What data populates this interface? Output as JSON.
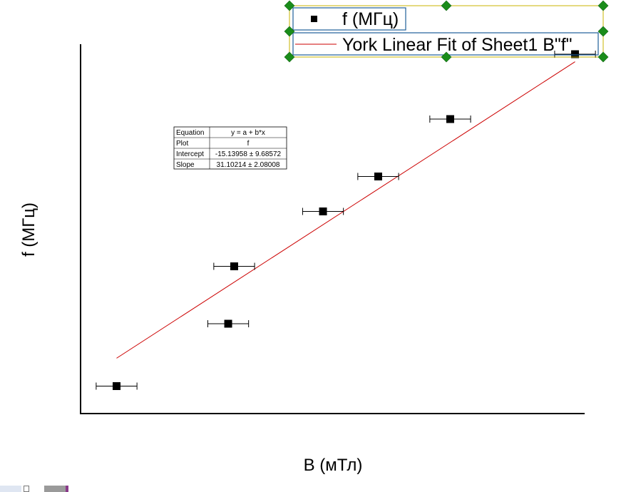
{
  "chart_data": {
    "type": "scatter",
    "xlabel": "B (мТл)",
    "ylabel": "f (МГц)",
    "xlim": [
      1.8,
      6.0
    ],
    "ylim": [
      28,
      176
    ],
    "grid": false,
    "series": [
      {
        "name": "f (МГц)",
        "marker": "square",
        "color": "#000000",
        "points": [
          {
            "x": 2.1,
            "y": 39,
            "xerr": 0.17
          },
          {
            "x": 3.03,
            "y": 64,
            "xerr": 0.17
          },
          {
            "x": 3.08,
            "y": 87,
            "xerr": 0.17
          },
          {
            "x": 3.82,
            "y": 109,
            "xerr": 0.17
          },
          {
            "x": 4.28,
            "y": 123,
            "xerr": 0.17
          },
          {
            "x": 4.88,
            "y": 146,
            "xerr": 0.17
          },
          {
            "x": 5.92,
            "y": 172,
            "xerr": 0.17
          }
        ]
      },
      {
        "name": "York Linear Fit of Sheet1 B\"f\"",
        "type": "line",
        "color": "#cc0000",
        "intercept": -15.13958,
        "slope": 31.10214,
        "x_range": [
          2.1,
          5.92
        ]
      }
    ],
    "legend": {
      "placement": "top-right",
      "entries": [
        "f (МГц)",
        "York Linear Fit of Sheet1 B\"f\""
      ]
    },
    "stats_table": {
      "rows": [
        {
          "label": "Equation",
          "value": "y = a + b*x"
        },
        {
          "label": "Plot",
          "value": "f"
        },
        {
          "label": "Intercept",
          "value": "-15.13958 ± 9.68572"
        },
        {
          "label": "Slope",
          "value": "31.10214 ± 2.08008"
        }
      ]
    }
  },
  "colors": {
    "fit_line": "#cc0000",
    "legend_selection_border": "#c8b400",
    "legend_handles": "#1a8c1a",
    "legend_inner_box": "#1f5f9a"
  },
  "taskbar": {
    "icon": "taskbar-app-icon"
  }
}
